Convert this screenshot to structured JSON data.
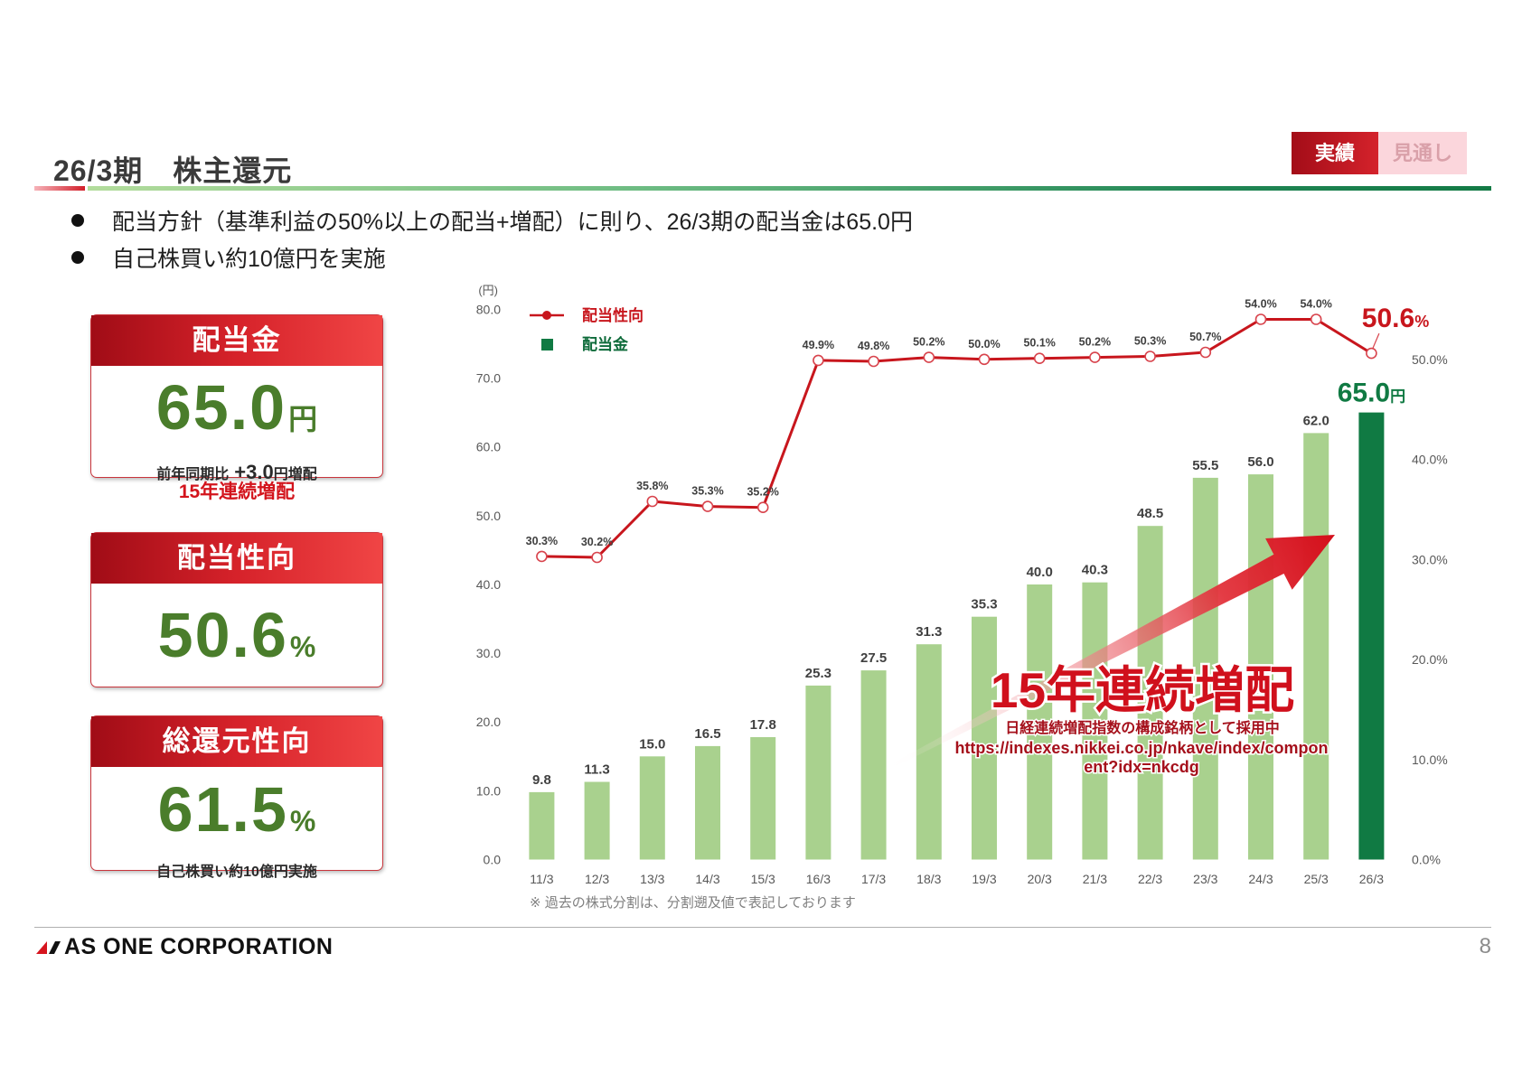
{
  "header": {
    "title": "26/3期　株主還元",
    "tabs": [
      {
        "label": "実績",
        "state": "active"
      },
      {
        "label": "見通し",
        "state": "inactive"
      }
    ]
  },
  "bullets": [
    "配当方針（基準利益の50%以上の配当+増配）に則り、26/3期の配当金は65.0円",
    "自己株買い約10億円を実施"
  ],
  "cards": {
    "dividend": {
      "title": "配当金",
      "value": "65.0",
      "unit": "円",
      "note_label": "前年同期比",
      "note_value": "+3.0",
      "note_unit": "円増配",
      "caption": "15年連続増配"
    },
    "payout_ratio": {
      "title": "配当性向",
      "value": "50.6",
      "unit": "%"
    },
    "total_return_ratio": {
      "title": "総還元性向",
      "value": "61.5",
      "unit": "%",
      "note": "自己株買い約10億円実施"
    }
  },
  "chart_data": {
    "type": "bar",
    "categories": [
      "11/3",
      "12/3",
      "13/3",
      "14/3",
      "15/3",
      "16/3",
      "17/3",
      "18/3",
      "19/3",
      "20/3",
      "21/3",
      "22/3",
      "23/3",
      "24/3",
      "25/3",
      "26/3"
    ],
    "series": [
      {
        "name": "配当金",
        "type": "bar",
        "axis": "left",
        "values": [
          9.8,
          11.3,
          15.0,
          16.5,
          17.8,
          25.3,
          27.5,
          31.3,
          35.3,
          40.0,
          40.3,
          48.5,
          55.5,
          56.0,
          62.0,
          65.0
        ],
        "color": "#a9d18e",
        "highlight_index": 15,
        "highlight_color": "#107a43",
        "highlight_unit": "円"
      },
      {
        "name": "配当性向",
        "type": "line",
        "axis": "right",
        "values": [
          30.3,
          30.2,
          35.8,
          35.3,
          35.2,
          49.9,
          49.8,
          50.2,
          50.0,
          50.1,
          50.2,
          50.3,
          50.7,
          54.0,
          54.0,
          50.6
        ],
        "color": "#c8161d",
        "label_suffix": "%",
        "highlight_index": 15
      }
    ],
    "y_unit": "(円)",
    "ylim": [
      0,
      80
    ],
    "y_ticks": [
      "0.0",
      "10.0",
      "20.0",
      "30.0",
      "40.0",
      "50.0",
      "60.0",
      "70.0",
      "80.0"
    ],
    "y2lim": [
      0,
      55
    ],
    "y2_ticks": [
      "0.0%",
      "10.0%",
      "20.0%",
      "30.0%",
      "40.0%",
      "50.0%"
    ],
    "grid": false,
    "legend_position": "top-left",
    "annotation": {
      "headline": "15年連続増配",
      "subline": "日経連続増配指数の構成銘柄として採用中",
      "url_lines": [
        "https://indexes.nikkei.co.jp/nkave/index/compon",
        "ent?idx=nkcdg"
      ]
    },
    "footnote": "※ 過去の株式分割は、分割遡及値で表記しております"
  },
  "footer": {
    "logo_text": "AS ONE CORPORATION",
    "page_number": "8"
  }
}
